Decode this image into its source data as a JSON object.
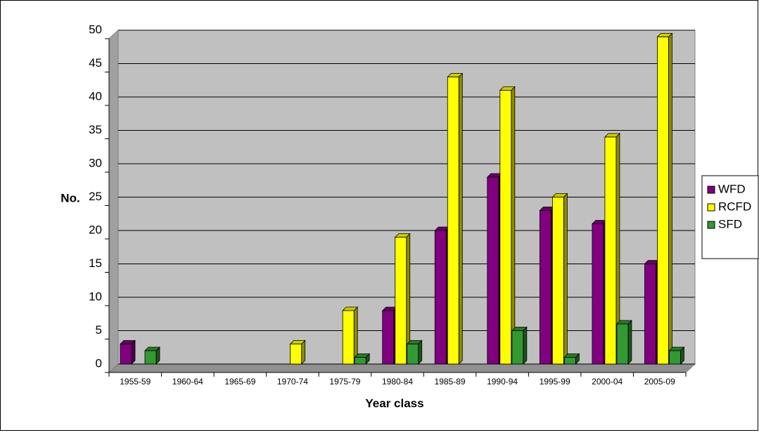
{
  "chart_data": {
    "type": "bar3d",
    "xlabel": "Year class",
    "ylabel": "No.",
    "categories": [
      "1955-59",
      "1960-64",
      "1965-69",
      "1970-74",
      "1975-79",
      "1980-84",
      "1985-89",
      "1990-94",
      "1995-99",
      "2000-04",
      "2005-09"
    ],
    "series": [
      {
        "name": "WFD",
        "color": "#800080",
        "values": [
          3,
          0,
          0,
          0,
          0,
          8,
          20,
          28,
          23,
          21,
          15
        ]
      },
      {
        "name": "RCFD",
        "color": "#ffff00",
        "values": [
          0,
          0,
          0,
          3,
          8,
          19,
          43,
          41,
          25,
          34,
          49
        ]
      },
      {
        "name": "SFD",
        "color": "#339933",
        "values": [
          2,
          0,
          0,
          0,
          1,
          3,
          0,
          5,
          1,
          6,
          2
        ]
      }
    ],
    "ylim": [
      0,
      50
    ],
    "yticks": [
      0,
      5,
      10,
      15,
      20,
      25,
      30,
      35,
      40,
      45,
      50
    ],
    "grid": true,
    "legend": "right"
  }
}
